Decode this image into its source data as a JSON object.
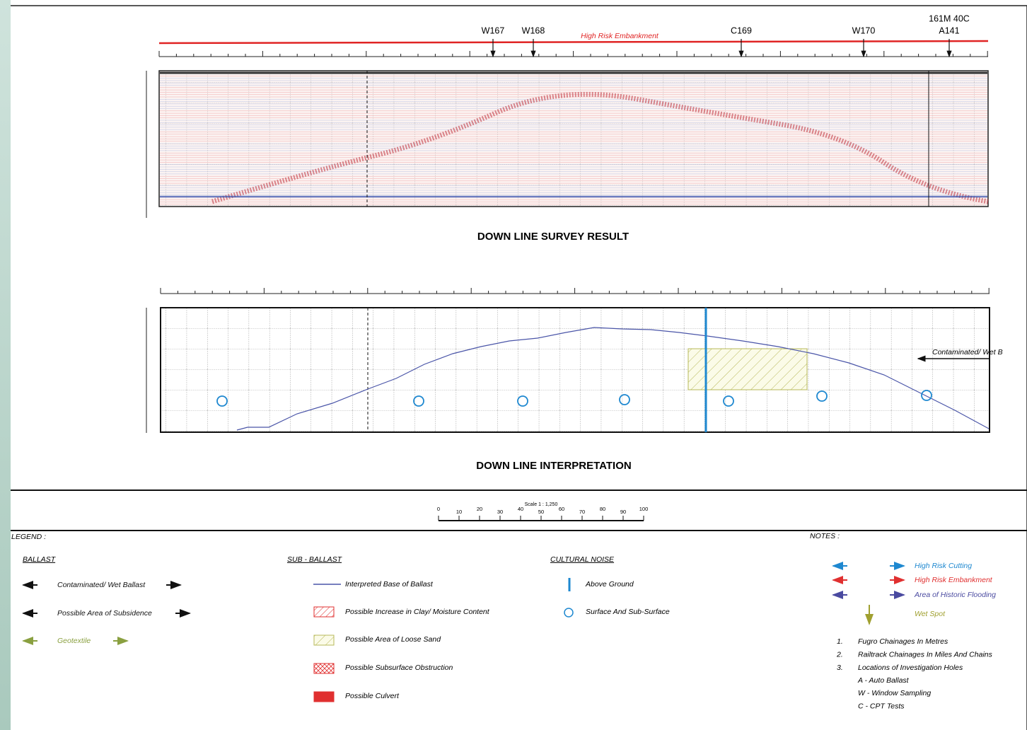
{
  "header": {
    "markers": [
      {
        "label": "W167"
      },
      {
        "label": "W168"
      },
      {
        "label": "C169"
      },
      {
        "label": "W170"
      },
      {
        "label": "A141",
        "sublabel": "161M 40C"
      }
    ],
    "risk_label": "High Risk Embankment"
  },
  "survey_title": "DOWN LINE SURVEY RESULT",
  "interpretation": {
    "title": "DOWN LINE INTERPRETATION",
    "arrow_label": "Contaminated/ Wet B"
  },
  "scale": {
    "label": "Scale 1 : 1,250",
    "ticks": [
      0,
      10,
      20,
      30,
      40,
      50,
      60,
      70,
      80,
      90,
      100
    ]
  },
  "legend": {
    "title": "LEGEND :",
    "ballast": {
      "heading": "BALLAST",
      "items": [
        "Contaminated/ Wet Ballast",
        "Possible Area of Subsidence",
        "Geotextile"
      ]
    },
    "sub_ballast": {
      "heading": "SUB - BALLAST",
      "items": [
        "Interpreted Base of Ballast",
        "Possible Increase in Clay/ Moisture Content",
        "Possible Area of Loose  Sand",
        "Possible Subsurface Obstruction",
        "Possible Culvert"
      ]
    },
    "cultural_noise": {
      "heading": "CULTURAL NOISE",
      "items": [
        "Above Ground",
        "Surface And Sub-Surface"
      ]
    }
  },
  "notes": {
    "title": "NOTES :",
    "risk_items": [
      "High Risk Cutting",
      "High Risk Embankment",
      "Area of Historic Flooding",
      "Wet Spot"
    ],
    "numbered": [
      {
        "num": "1.",
        "text": "Fugro Chainages In Metres"
      },
      {
        "num": "2.",
        "text": "Railtrack Chainages In Miles And Chains"
      },
      {
        "num": "3.",
        "text": "Locations of Investigation Holes"
      }
    ],
    "codes": [
      "A - Auto Ballast",
      "W - Window Sampling",
      "C - CPT Tests"
    ]
  }
}
